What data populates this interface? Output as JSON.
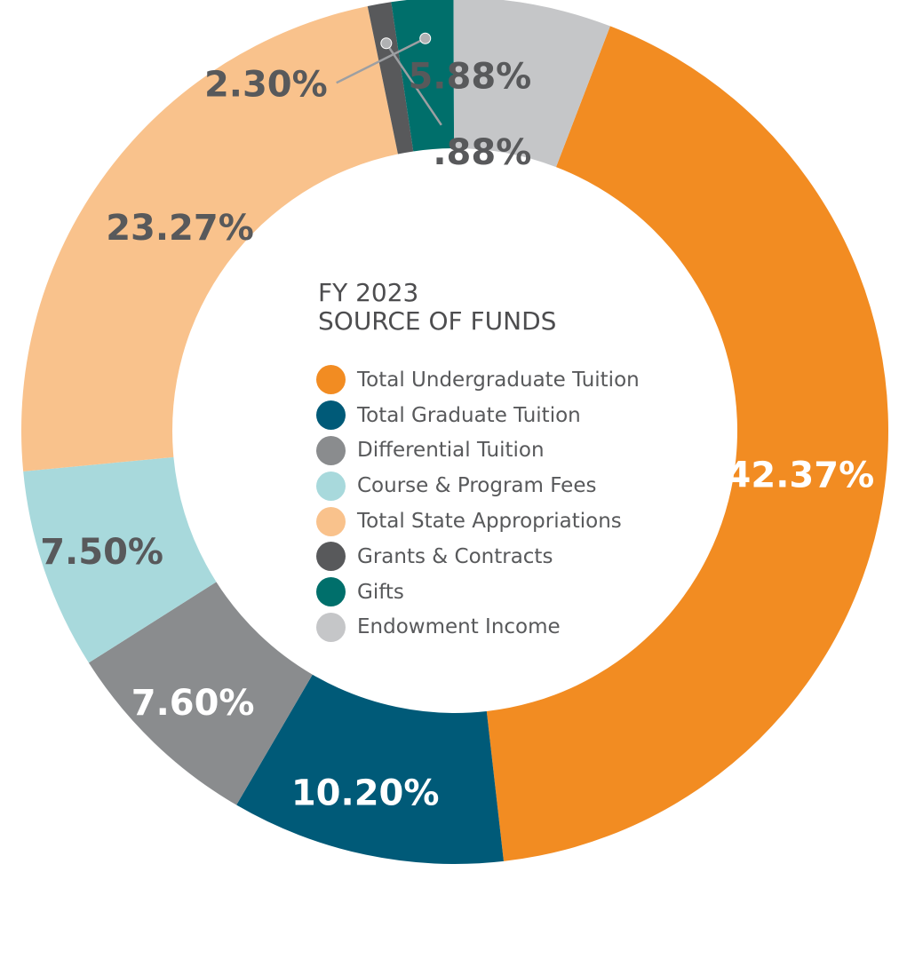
{
  "chart_data": {
    "type": "pie",
    "title": "FY 2023",
    "subtitle": "SOURCE OF FUNDS",
    "categories": [
      "Total Undergraduate Tuition",
      "Total Graduate Tuition",
      "Differential Tuition",
      "Course & Program Fees",
      "Total State Appropriations",
      "Grants & Contracts",
      "Gifts",
      "Endowment Income"
    ],
    "values": [
      42.37,
      10.2,
      7.6,
      7.5,
      23.27,
      0.88,
      2.3,
      5.88
    ],
    "labels": [
      "42.37%",
      "10.20%",
      "7.60%",
      "7.50%",
      "23.27%",
      ".88%",
      "2.30%",
      "5.88%"
    ],
    "colors": [
      "#f28c22",
      "#005a78",
      "#8a8c8e",
      "#a8d9dc",
      "#f9c28c",
      "#58595b",
      "#006f6b",
      "#c5c6c8"
    ],
    "label_colors": [
      "#ffffff",
      "#ffffff",
      "#ffffff",
      "#58595b",
      "#58595b",
      "#58595b",
      "#58595b",
      "#58595b"
    ],
    "legend": "center",
    "donut": true
  }
}
